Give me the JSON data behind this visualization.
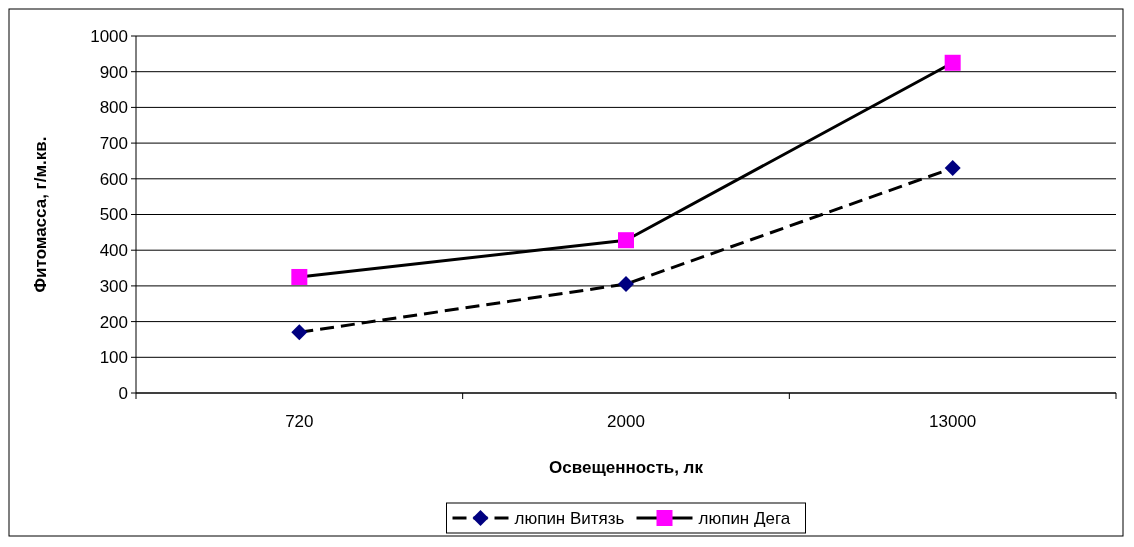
{
  "chart_data": {
    "type": "line",
    "xlabel": "Освещенность, лк",
    "ylabel": "Фитомасса, г/м.кв.",
    "categories": [
      "720",
      "2000",
      "13000"
    ],
    "series": [
      {
        "name": "люпин Витязь",
        "color": "#000080",
        "values": [
          170,
          305,
          630
        ],
        "marker": "diamond",
        "line_style": "dashed"
      },
      {
        "name": "люпин Дега",
        "color": "#ff00ff",
        "values": [
          325,
          428,
          925
        ],
        "marker": "square",
        "line_style": "solid"
      }
    ],
    "ylim": [
      0,
      1000
    ],
    "yticks": [
      0,
      100,
      200,
      300,
      400,
      500,
      600,
      700,
      800,
      900,
      1000
    ],
    "grid": "y",
    "legend": "bottom"
  }
}
